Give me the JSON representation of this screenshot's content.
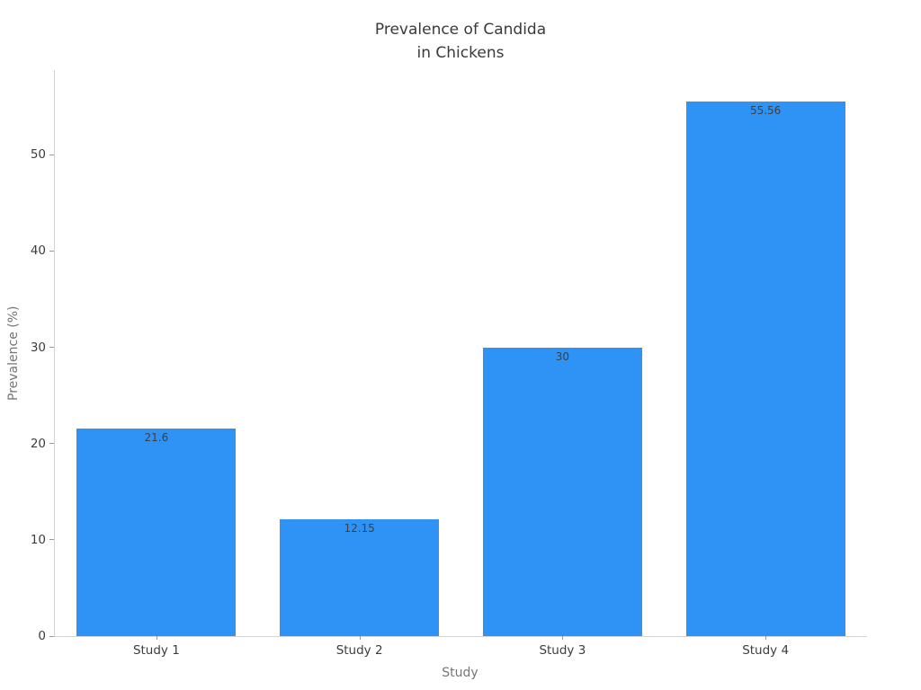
{
  "chart_data": {
    "type": "bar",
    "title": "Prevalence of Candida\nin Chickens",
    "xlabel": "Study",
    "ylabel": "Prevalence (%)",
    "categories": [
      "Study 1",
      "Study 2",
      "Study 3",
      "Study 4"
    ],
    "values": [
      21.6,
      12.15,
      30,
      55.56
    ],
    "value_labels": [
      "21.6",
      "12.15",
      "30",
      "55.56"
    ],
    "yticks": [
      0,
      10,
      20,
      30,
      40,
      50
    ],
    "ylim": [
      0,
      58.8
    ],
    "grid": false,
    "legend_position": "none",
    "colors": {
      "bar": "#2e93f5",
      "axis_line": "#d4d4d4",
      "tick_mark": "#9a9a9a",
      "tick_label": "#3d3d3d",
      "axis_title": "#757575",
      "chart_title": "#3a3a3a",
      "value_label": "#3f3f3f",
      "background": "#ffffff"
    }
  }
}
